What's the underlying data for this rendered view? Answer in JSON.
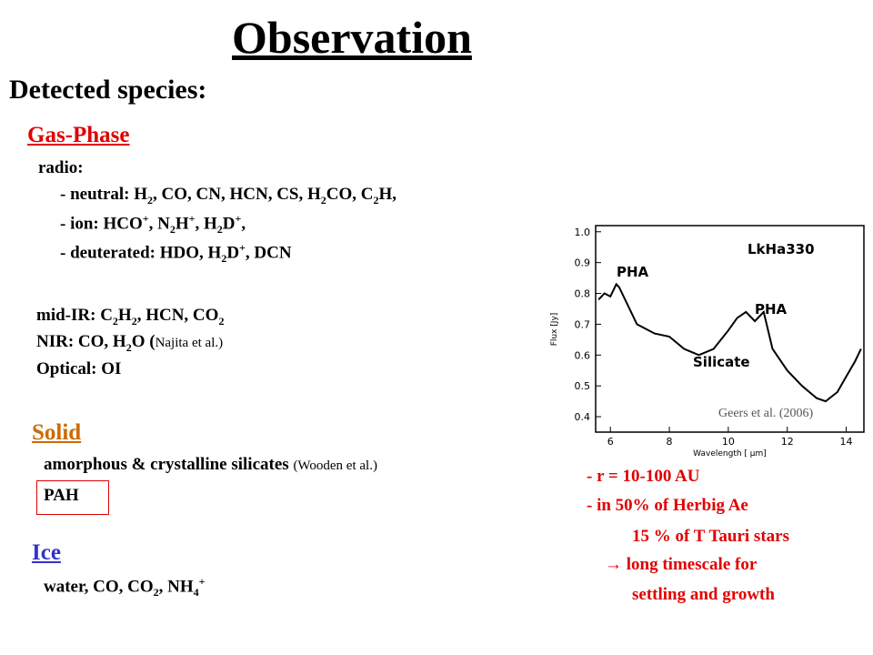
{
  "title": "Observation",
  "subtitle": "Detected species:",
  "gas_phase": {
    "heading": "Gas-Phase",
    "lines": [
      [
        "radio:"
      ],
      [
        "- neutral: H",
        {
          "sub": "2"
        },
        ", CO, CN, HCN, CS, H",
        {
          "sub": "2"
        },
        "CO, C",
        {
          "sub": "2"
        },
        "H,"
      ],
      [
        "- ion: HCO",
        {
          "sup": "+"
        },
        ", N",
        {
          "sub": "2"
        },
        "H",
        {
          "sup": "+"
        },
        ", H",
        {
          "sub": "2"
        },
        "D",
        {
          "sup": "+"
        },
        ","
      ],
      [
        "- deuterated: HDO, H",
        {
          "sub": "2"
        },
        "D",
        {
          "sup": "+"
        },
        ", DCN"
      ],
      [
        "mid-IR: C",
        {
          "sub": "2"
        },
        "H",
        {
          "sub": "2"
        },
        ", HCN, CO",
        {
          "sub": "2"
        }
      ],
      [
        "NIR: CO, H",
        {
          "sub": "2"
        },
        "O  (",
        {
          "small": "Najita et al.)"
        }
      ],
      [
        "Optical: OI"
      ]
    ]
  },
  "solid": {
    "heading": "Solid",
    "lines": [
      [
        "amorphous & crystalline silicates ",
        {
          "small": "(Wooden et al.)"
        }
      ],
      [
        "PAH"
      ]
    ]
  },
  "ice": {
    "heading": "Ice",
    "lines": [
      [
        "water, CO, CO",
        {
          "sub": "2"
        },
        ", NH",
        {
          "sub": "4"
        },
        {
          "sup": "+"
        }
      ]
    ]
  },
  "figure": {
    "ylabel": "Flux [Jy]",
    "xlabel": "Wavelength [ μm]",
    "xlim": [
      5.5,
      14.6
    ],
    "ylim": [
      0.35,
      1.02
    ],
    "xticks": [
      6,
      8,
      10,
      12,
      14
    ],
    "yticks": [
      {
        "value": 0.4,
        "label": "0.4"
      },
      {
        "value": 0.5,
        "label": "0.5"
      },
      {
        "value": 0.6,
        "label": "0.6"
      },
      {
        "value": 0.7,
        "label": "0.7"
      },
      {
        "value": 0.8,
        "label": "0.8"
      },
      {
        "value": 0.9,
        "label": "0.9"
      },
      {
        "value": 1,
        "label": "1.0"
      }
    ],
    "x": [
      5.6,
      5.8,
      6.0,
      6.2,
      6.3,
      6.5,
      6.9,
      7.5,
      8.0,
      8.5,
      9.0,
      9.5,
      10.0,
      10.3,
      10.6,
      10.9,
      11.2,
      11.5,
      12.0,
      12.5,
      13.0,
      13.3,
      13.7,
      14.0,
      14.3,
      14.5
    ],
    "y": [
      0.78,
      0.8,
      0.79,
      0.83,
      0.82,
      0.78,
      0.7,
      0.67,
      0.66,
      0.62,
      0.6,
      0.62,
      0.68,
      0.72,
      0.74,
      0.71,
      0.74,
      0.62,
      0.55,
      0.5,
      0.46,
      0.45,
      0.48,
      0.53,
      0.58,
      0.62
    ],
    "labels": [
      "LkHa330",
      "PHA",
      "PHA",
      "Silicate"
    ],
    "credit": "Geers et al. (2006)"
  },
  "notes": [
    "- r = 10-100 AU",
    "- in 50% of Herbig Ae",
    "15 % of T Tauri stars",
    "→ long timescale for",
    "settling and growth"
  ]
}
